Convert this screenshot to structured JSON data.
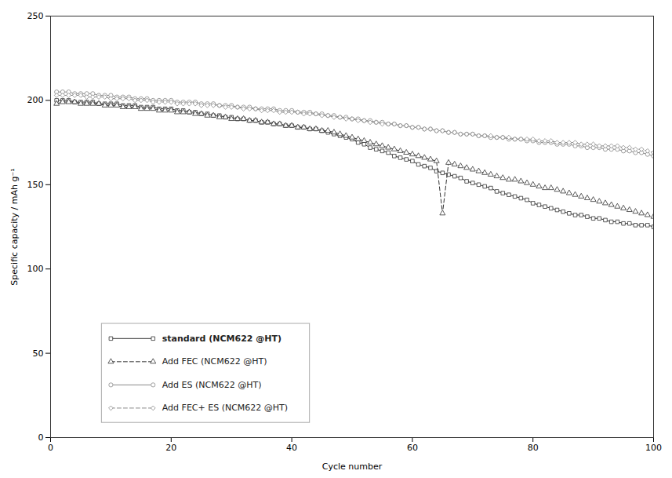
{
  "chart_data": {
    "type": "line",
    "xlabel": "Cycle number",
    "ylabel": "Specific capacity / mAh g⁻¹",
    "xlim": [
      0,
      100
    ],
    "ylim": [
      0,
      250
    ],
    "xticks": [
      0,
      20,
      40,
      60,
      80,
      100
    ],
    "yticks": [
      0,
      50,
      100,
      150,
      200,
      250
    ],
    "grid": false,
    "legend": "lower left",
    "x": [
      1,
      2,
      3,
      4,
      5,
      6,
      7,
      8,
      9,
      10,
      11,
      12,
      13,
      14,
      15,
      16,
      17,
      18,
      19,
      20,
      21,
      22,
      23,
      24,
      25,
      26,
      27,
      28,
      29,
      30,
      31,
      32,
      33,
      34,
      35,
      36,
      37,
      38,
      39,
      40,
      41,
      42,
      43,
      44,
      45,
      46,
      47,
      48,
      49,
      50,
      51,
      52,
      53,
      54,
      55,
      56,
      57,
      58,
      59,
      60,
      61,
      62,
      63,
      64,
      65,
      66,
      67,
      68,
      69,
      70,
      71,
      72,
      73,
      74,
      75,
      76,
      77,
      78,
      79,
      80,
      81,
      82,
      83,
      84,
      85,
      86,
      87,
      88,
      89,
      90,
      91,
      92,
      93,
      94,
      95,
      96,
      97,
      98,
      99,
      100
    ],
    "series": [
      {
        "name": "standard (NCM622 @HT)",
        "color": "#333333",
        "marker": "square",
        "line_style": "solid",
        "values": [
          200,
          200,
          200,
          199,
          199,
          199,
          199,
          198,
          198,
          198,
          198,
          197,
          197,
          197,
          196,
          196,
          196,
          195,
          195,
          195,
          194,
          194,
          193,
          193,
          192,
          192,
          191,
          191,
          190,
          190,
          189,
          189,
          188,
          188,
          187,
          187,
          186,
          186,
          185,
          185,
          184,
          184,
          183,
          183,
          182,
          181,
          180,
          179,
          178,
          177,
          175,
          174,
          172,
          171,
          170,
          169,
          167,
          166,
          165,
          164,
          162,
          161,
          160,
          158,
          157,
          156,
          155,
          154,
          152,
          151,
          150,
          149,
          148,
          146,
          145,
          144,
          143,
          142,
          141,
          139,
          138,
          137,
          136,
          135,
          134,
          133,
          132,
          132,
          131,
          130,
          130,
          129,
          128,
          128,
          127,
          127,
          126,
          126,
          126,
          125
        ]
      },
      {
        "name": "Add FEC (NCM622 @HT)",
        "color": "#333333",
        "marker": "triangle",
        "line_style": "dashed",
        "values": [
          198,
          199,
          199,
          199,
          198,
          198,
          198,
          198,
          197,
          197,
          197,
          196,
          196,
          196,
          195,
          195,
          195,
          194,
          194,
          194,
          193,
          193,
          193,
          192,
          192,
          191,
          191,
          190,
          190,
          189,
          189,
          189,
          188,
          188,
          187,
          187,
          186,
          186,
          185,
          185,
          184,
          184,
          183,
          183,
          182,
          182,
          181,
          180,
          179,
          178,
          177,
          176,
          175,
          174,
          173,
          172,
          171,
          170,
          169,
          168,
          167,
          166,
          165,
          164,
          133,
          163,
          162,
          161,
          160,
          159,
          158,
          157,
          156,
          155,
          154,
          153,
          153,
          152,
          151,
          150,
          149,
          148,
          148,
          147,
          146,
          145,
          144,
          143,
          142,
          141,
          140,
          139,
          138,
          137,
          136,
          135,
          134,
          133,
          132,
          131
        ]
      },
      {
        "name": "Add ES (NCM622 @HT)",
        "color": "#888888",
        "marker": "circle",
        "line_style": "solid",
        "values": [
          205,
          205,
          205,
          204,
          204,
          204,
          204,
          203,
          203,
          203,
          202,
          202,
          202,
          201,
          201,
          201,
          200,
          200,
          200,
          200,
          199,
          199,
          199,
          199,
          198,
          198,
          198,
          197,
          197,
          197,
          196,
          196,
          196,
          195,
          195,
          195,
          195,
          194,
          194,
          194,
          193,
          193,
          193,
          192,
          192,
          191,
          191,
          190,
          190,
          189,
          189,
          188,
          188,
          187,
          187,
          186,
          186,
          185,
          185,
          184,
          184,
          183,
          183,
          182,
          182,
          181,
          181,
          180,
          180,
          180,
          179,
          179,
          178,
          178,
          178,
          177,
          177,
          177,
          176,
          176,
          175,
          175,
          175,
          174,
          174,
          174,
          173,
          173,
          172,
          172,
          172,
          171,
          171,
          171,
          170,
          170,
          169,
          169,
          168,
          167
        ]
      },
      {
        "name": "Add FEC+ ES (NCM622 @HT)",
        "color": "#888888",
        "marker": "diamond",
        "line_style": "dashed",
        "values": [
          203,
          203,
          203,
          203,
          203,
          202,
          202,
          202,
          202,
          201,
          201,
          201,
          201,
          200,
          200,
          200,
          199,
          199,
          199,
          199,
          198,
          198,
          198,
          198,
          197,
          197,
          197,
          197,
          196,
          196,
          196,
          195,
          195,
          195,
          194,
          194,
          194,
          193,
          193,
          193,
          193,
          192,
          192,
          192,
          191,
          191,
          190,
          190,
          189,
          189,
          188,
          188,
          187,
          187,
          186,
          186,
          186,
          185,
          185,
          184,
          184,
          183,
          183,
          182,
          182,
          181,
          181,
          180,
          180,
          180,
          179,
          179,
          179,
          178,
          178,
          178,
          177,
          177,
          177,
          177,
          176,
          176,
          176,
          175,
          175,
          175,
          175,
          174,
          174,
          174,
          173,
          173,
          173,
          173,
          172,
          172,
          171,
          171,
          170,
          169
        ]
      }
    ]
  }
}
